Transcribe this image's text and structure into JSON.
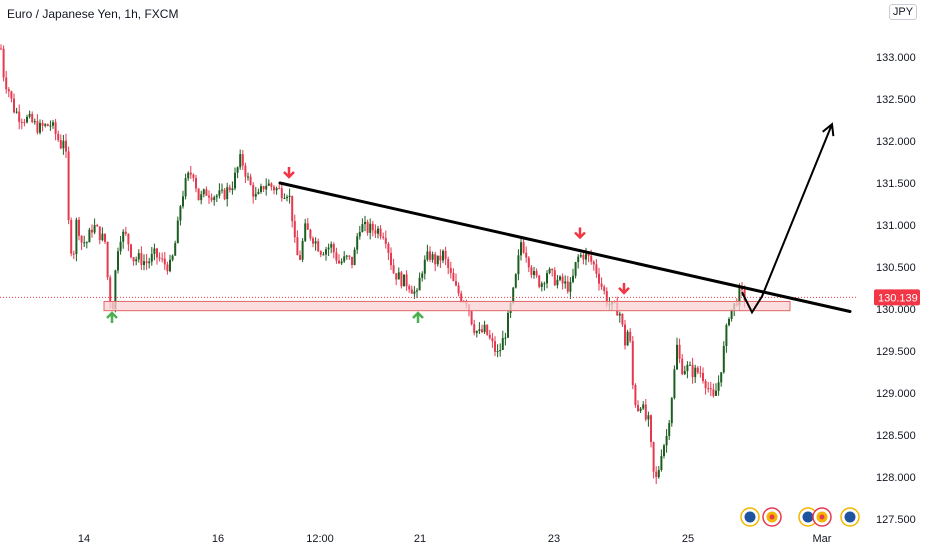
{
  "header": {
    "title": "Euro / Japanese Yen, 1h, FXCM",
    "currency": "JPY"
  },
  "colors": {
    "up": "#1b5e20",
    "down": "#e53950",
    "last_price": "#f23645",
    "zone_fill": "#fbd3d6",
    "zone_stroke": "#e06666",
    "arrow_up": "#4caf50",
    "arrow_down": "#f23645",
    "line": "#000000"
  },
  "chart_data": {
    "type": "candlestick",
    "title": "Euro / Japanese Yen, 1h, FXCM",
    "ylabel": "JPY",
    "ylim": [
      127.35,
      133.6
    ],
    "y_ticks": [
      "133.000",
      "132.500",
      "132.000",
      "131.500",
      "131.000",
      "130.500",
      "130.000",
      "129.500",
      "129.000",
      "128.500",
      "128.000",
      "127.500"
    ],
    "x_ticks": [
      "14",
      "16",
      "12:00",
      "21",
      "23",
      "25",
      "Mar"
    ],
    "last_price": "130.139",
    "close_path": [
      [
        0,
        133.1
      ],
      [
        3,
        132.75
      ],
      [
        8,
        132.6
      ],
      [
        12,
        132.4
      ],
      [
        18,
        132.3
      ],
      [
        28,
        132.25
      ],
      [
        38,
        132.15
      ],
      [
        50,
        132.2
      ],
      [
        60,
        131.95
      ],
      [
        64,
        132.1
      ],
      [
        68,
        130.9
      ],
      [
        72,
        130.6
      ],
      [
        76,
        131.1
      ],
      [
        80,
        130.8
      ],
      [
        86,
        130.8
      ],
      [
        92,
        131.0
      ],
      [
        98,
        130.9
      ],
      [
        104,
        130.8
      ],
      [
        108,
        130.15
      ],
      [
        112,
        130.05
      ],
      [
        116,
        130.7
      ],
      [
        120,
        130.9
      ],
      [
        126,
        130.85
      ],
      [
        132,
        130.6
      ],
      [
        138,
        130.6
      ],
      [
        146,
        130.55
      ],
      [
        154,
        130.65
      ],
      [
        162,
        130.55
      ],
      [
        170,
        130.5
      ],
      [
        176,
        130.9
      ],
      [
        180,
        131.3
      ],
      [
        186,
        131.55
      ],
      [
        192,
        131.65
      ],
      [
        198,
        131.3
      ],
      [
        206,
        131.4
      ],
      [
        214,
        131.35
      ],
      [
        222,
        131.35
      ],
      [
        232,
        131.5
      ],
      [
        240,
        131.8
      ],
      [
        248,
        131.5
      ],
      [
        256,
        131.3
      ],
      [
        264,
        131.5
      ],
      [
        272,
        131.45
      ],
      [
        280,
        131.4
      ],
      [
        287,
        131.4
      ],
      [
        290,
        131.25
      ],
      [
        294,
        130.75
      ],
      [
        298,
        130.55
      ],
      [
        304,
        130.95
      ],
      [
        312,
        130.85
      ],
      [
        320,
        130.7
      ],
      [
        330,
        130.75
      ],
      [
        338,
        130.55
      ],
      [
        346,
        130.6
      ],
      [
        352,
        130.55
      ],
      [
        358,
        131.0
      ],
      [
        366,
        130.95
      ],
      [
        376,
        130.95
      ],
      [
        384,
        130.9
      ],
      [
        392,
        130.45
      ],
      [
        400,
        130.35
      ],
      [
        408,
        130.3
      ],
      [
        416,
        130.15
      ],
      [
        420,
        130.45
      ],
      [
        428,
        130.65
      ],
      [
        436,
        130.55
      ],
      [
        442,
        130.65
      ],
      [
        448,
        130.45
      ],
      [
        454,
        130.25
      ],
      [
        460,
        130.15
      ],
      [
        466,
        130.1
      ],
      [
        472,
        129.8
      ],
      [
        478,
        129.7
      ],
      [
        484,
        129.75
      ],
      [
        490,
        129.6
      ],
      [
        497,
        129.45
      ],
      [
        504,
        129.7
      ],
      [
        510,
        130.05
      ],
      [
        514,
        130.3
      ],
      [
        520,
        130.8
      ],
      [
        526,
        130.65
      ],
      [
        532,
        130.4
      ],
      [
        540,
        130.3
      ],
      [
        546,
        130.45
      ],
      [
        554,
        130.35
      ],
      [
        562,
        130.3
      ],
      [
        570,
        130.25
      ],
      [
        576,
        130.6
      ],
      [
        582,
        130.65
      ],
      [
        588,
        130.6
      ],
      [
        594,
        130.5
      ],
      [
        600,
        130.3
      ],
      [
        606,
        130.1
      ],
      [
        612,
        130.0
      ],
      [
        618,
        130.0
      ],
      [
        624,
        129.6
      ],
      [
        628,
        129.8
      ],
      [
        632,
        129.05
      ],
      [
        636,
        128.8
      ],
      [
        640,
        128.9
      ],
      [
        644,
        128.7
      ],
      [
        648,
        128.65
      ],
      [
        652,
        128.05
      ],
      [
        656,
        127.95
      ],
      [
        660,
        128.3
      ],
      [
        666,
        128.5
      ],
      [
        672,
        129.1
      ],
      [
        676,
        129.55
      ],
      [
        680,
        129.3
      ],
      [
        686,
        129.3
      ],
      [
        692,
        129.25
      ],
      [
        700,
        129.25
      ],
      [
        706,
        129.1
      ],
      [
        712,
        128.9
      ],
      [
        718,
        129.15
      ],
      [
        722,
        129.45
      ],
      [
        728,
        129.95
      ],
      [
        734,
        130.05
      ],
      [
        738,
        130.2
      ],
      [
        742,
        130.15
      ],
      [
        746,
        130.14
      ]
    ],
    "resistance_line": [
      [
        280,
        131.5
      ],
      [
        850,
        129.97
      ]
    ],
    "support_zone": [
      129.98,
      130.09
    ],
    "support_zone_x": [
      104,
      790
    ],
    "projection_path": [
      [
        742,
        130.2
      ],
      [
        752,
        129.96
      ],
      [
        762,
        130.15
      ],
      [
        832,
        132.2
      ]
    ],
    "up_arrows_x": [
      112,
      418
    ],
    "down_arrows_x": [
      289,
      580,
      624
    ],
    "down_arrows_above_price": [
      131.5,
      130.78,
      130.12
    ],
    "up_arrows_below_price": [
      130.0,
      130.0
    ],
    "event_markers_x": [
      750,
      808,
      826,
      850
    ]
  }
}
